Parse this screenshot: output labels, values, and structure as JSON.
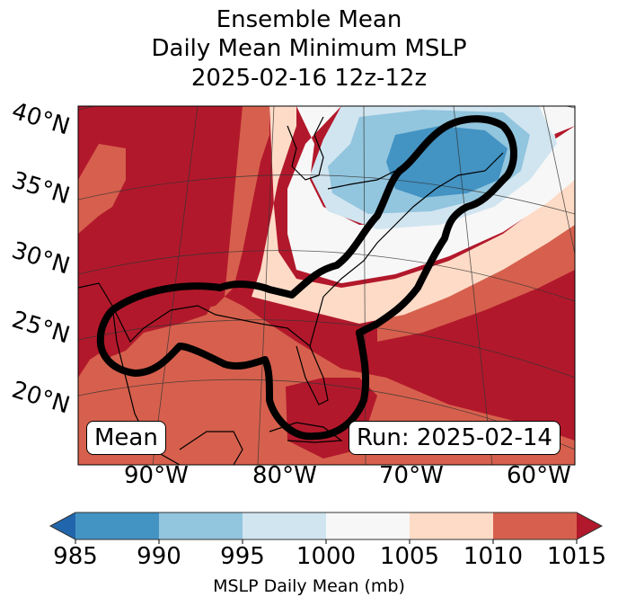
{
  "title": {
    "line1": "Ensemble Mean",
    "line2": "Daily Mean Minimum MSLP",
    "line3": "2025-02-16 12z-12z"
  },
  "map": {
    "lat_labels": [
      "40°N",
      "35°N",
      "30°N",
      "25°N",
      "20°N"
    ],
    "lon_labels": [
      "90°W",
      "80°W",
      "70°W",
      "60°W"
    ],
    "left_box": "Mean",
    "right_box": "Run: 2025-02-14",
    "contour_color": "#000000"
  },
  "colorbar": {
    "label": "MSLP Daily Mean (mb)",
    "ticks": [
      "985",
      "990",
      "995",
      "1000",
      "1005",
      "1010",
      "1015"
    ],
    "colors": {
      "under": "#2166ac",
      "bins": [
        "#4393c3",
        "#92c5de",
        "#d1e5f0",
        "#f7f7f7",
        "#fddbc7",
        "#d6604d"
      ],
      "over": "#b2182b"
    }
  },
  "chart_data": {
    "type": "heatmap",
    "title": "Ensemble Mean Daily Mean Minimum MSLP 2025-02-16 12z-12z",
    "xlabel": "",
    "ylabel": "",
    "x_ticks": [
      "90°W",
      "80°W",
      "70°W",
      "60°W"
    ],
    "y_ticks": [
      "20°N",
      "25°N",
      "30°N",
      "35°N",
      "40°N"
    ],
    "colorbar": {
      "label": "MSLP Daily Mean (mb)",
      "levels": [
        985,
        990,
        995,
        1000,
        1005,
        1010,
        1015
      ],
      "extend": "both"
    },
    "annotations": [
      "Mean",
      "Run: 2025-02-14"
    ],
    "description": "Low pressure (985-990 mb) centered over the Gulf of Maine / Nova Scotia; high pressure (>1015 mb) over central US and western Atlantic; thick black contour outlines a region extending from the Gulf of Mexico up the US East Coast to Nova Scotia."
  }
}
